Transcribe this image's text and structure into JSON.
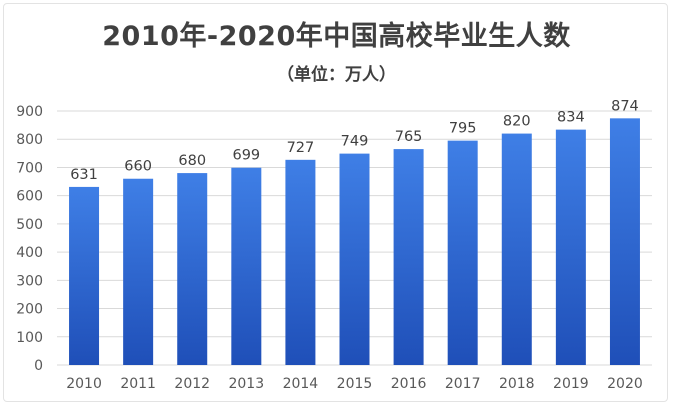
{
  "chart_data": {
    "type": "bar",
    "title": "2010年-2020年中国高校毕业生人数",
    "subtitle": "（单位：万人）",
    "categories": [
      "2010",
      "2011",
      "2012",
      "2013",
      "2014",
      "2015",
      "2016",
      "2017",
      "2018",
      "2019",
      "2020"
    ],
    "values": [
      631,
      660,
      680,
      699,
      727,
      749,
      765,
      795,
      820,
      834,
      874
    ],
    "ylim": [
      0,
      900
    ],
    "yticks": [
      0,
      100,
      200,
      300,
      400,
      500,
      600,
      700,
      800,
      900
    ],
    "grid": true,
    "data_labels": true,
    "legend": "none",
    "colors": {
      "bar_top": "#3f7fe6",
      "bar_bottom": "#1f4fb8",
      "grid": "#d9d9d9"
    }
  }
}
